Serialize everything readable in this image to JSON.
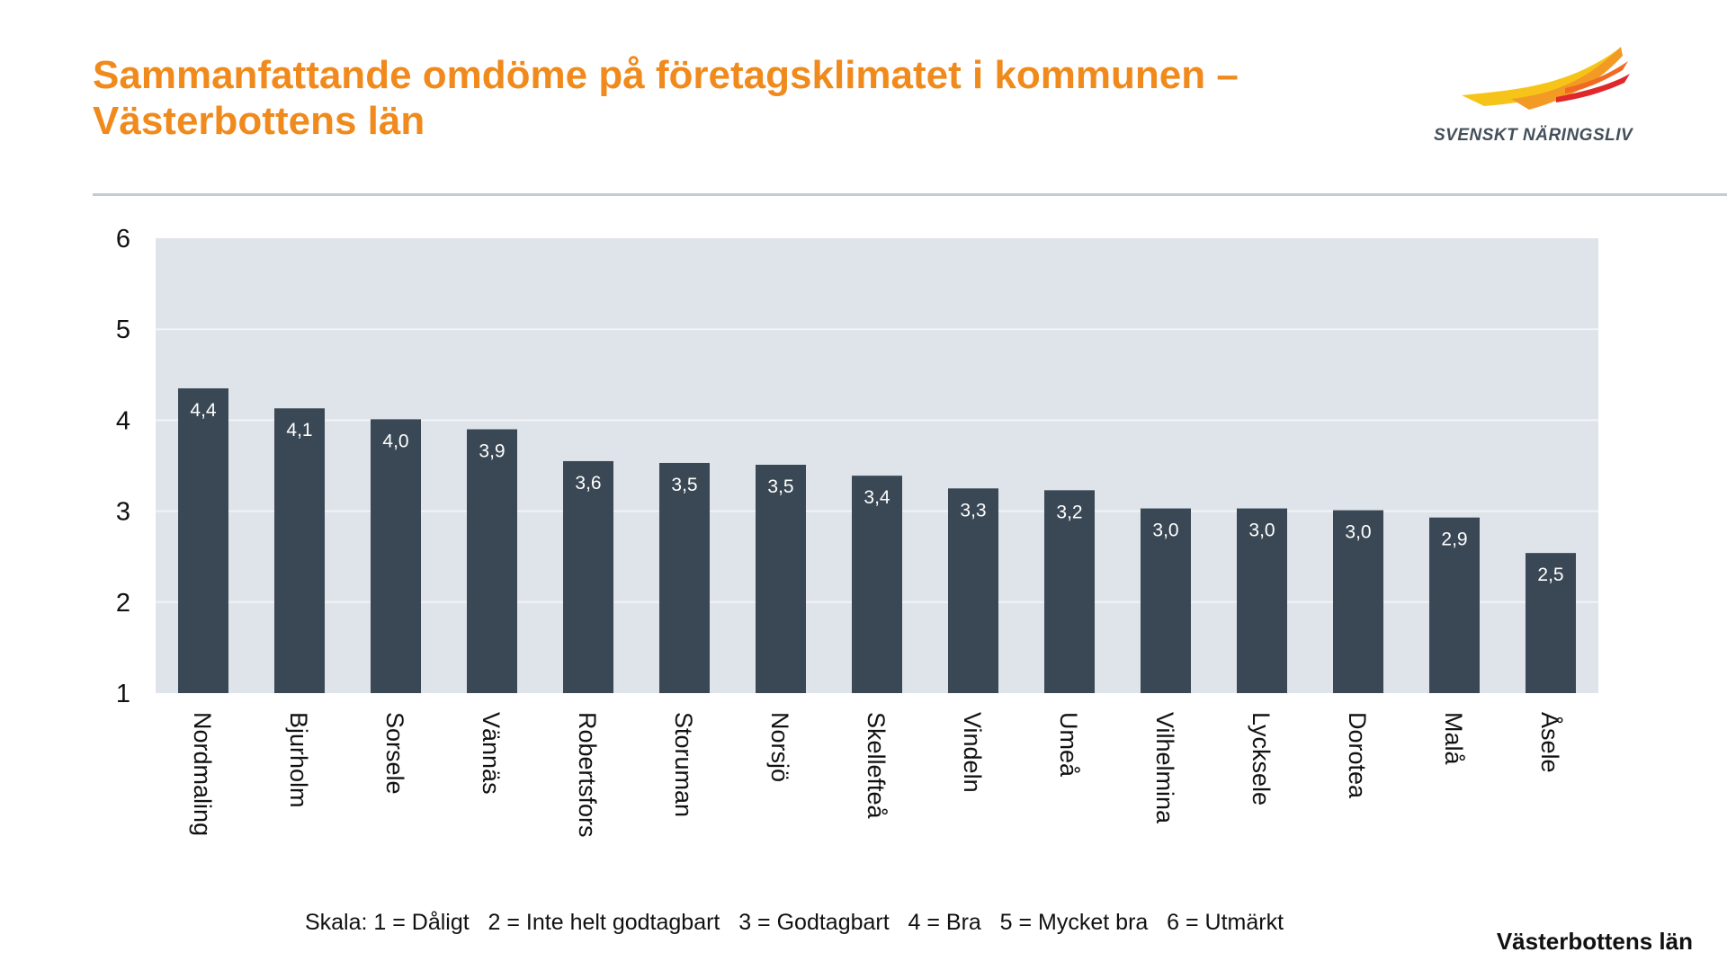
{
  "header": {
    "title_line1": "Sammanfattande omdöme på företagsklimatet i kommunen –",
    "title_line2": "Västerbottens län",
    "logo_text": "SVENSKT NÄRINGSLIV"
  },
  "colors": {
    "title": "#f08a1c",
    "bar": "#3a4855",
    "plot_bg": "#dee4ea",
    "grid": "#f2f4f6"
  },
  "chart_data": {
    "type": "bar",
    "title": "",
    "xlabel": "",
    "ylabel": "",
    "ylim": [
      1,
      6
    ],
    "yticks": [
      "1",
      "2",
      "3",
      "4",
      "5",
      "6"
    ],
    "grid": true,
    "categories": [
      "Nordmaling",
      "Bjurholm",
      "Sorsele",
      "Vännäs",
      "Robertsfors",
      "Storuman",
      "Norsjö",
      "Skellefteå",
      "Vindeln",
      "Umeå",
      "Vilhelmina",
      "Lycksele",
      "Dorotea",
      "Malå",
      "Åsele"
    ],
    "values": [
      4.35,
      4.13,
      4.01,
      3.9,
      3.55,
      3.53,
      3.51,
      3.39,
      3.25,
      3.23,
      3.03,
      3.03,
      3.01,
      2.93,
      2.54
    ],
    "data_labels": [
      "4,4",
      "4,1",
      "4,0",
      "3,9",
      "3,6",
      "3,5",
      "3,5",
      "3,4",
      "3,3",
      "3,2",
      "3,0",
      "3,0",
      "3,0",
      "2,9",
      "2,5"
    ]
  },
  "footer": {
    "scale_text": "Skala: 1 = Dåligt   2 = Inte helt godtagbart   3 = Godtagbart   4 = Bra   5 = Mycket bra   6 = Utmärkt",
    "region": "Västerbottens län"
  }
}
